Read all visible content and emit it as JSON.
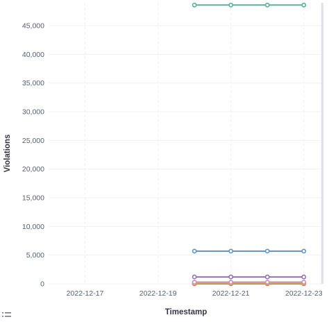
{
  "chart_data": {
    "type": "line",
    "xlabel": "Timestamp",
    "ylabel": "Violations",
    "x_ticks": [
      "2022-12-17",
      "2022-12-19",
      "2022-12-21",
      "2022-12-23"
    ],
    "x_range": [
      "2022-12-16",
      "2022-12-23.5"
    ],
    "y_ticks": [
      "0",
      "5,000",
      "10,000",
      "15,000",
      "20,000",
      "25,000",
      "30,000",
      "35,000",
      "40,000",
      "45,000"
    ],
    "ylim": [
      0,
      49000
    ],
    "x": [
      "2022-12-20",
      "2022-12-21",
      "2022-12-22",
      "2022-12-23"
    ],
    "grid": true,
    "shaded_region_after": "2022-12-23",
    "series": [
      {
        "color": "#54b399",
        "values": [
          48600,
          48600,
          48600,
          48600
        ]
      },
      {
        "color": "#6092c0",
        "values": [
          5700,
          5700,
          5700,
          5700
        ]
      },
      {
        "color": "#9170b8",
        "values": [
          1200,
          1200,
          1200,
          1200
        ]
      },
      {
        "color": "#ca8eae",
        "values": [
          300,
          300,
          300,
          300
        ]
      },
      {
        "color": "#d6bf57",
        "values": [
          200,
          200,
          200,
          200
        ]
      },
      {
        "color": "#da8b45",
        "values": [
          100,
          100,
          100,
          100
        ]
      },
      {
        "color": "#d36086",
        "values": [
          50,
          50,
          50,
          50
        ]
      },
      {
        "color": "#aa6556",
        "values": [
          20,
          20,
          20,
          20
        ]
      }
    ]
  },
  "legend_toggle_icon": "list-icon"
}
